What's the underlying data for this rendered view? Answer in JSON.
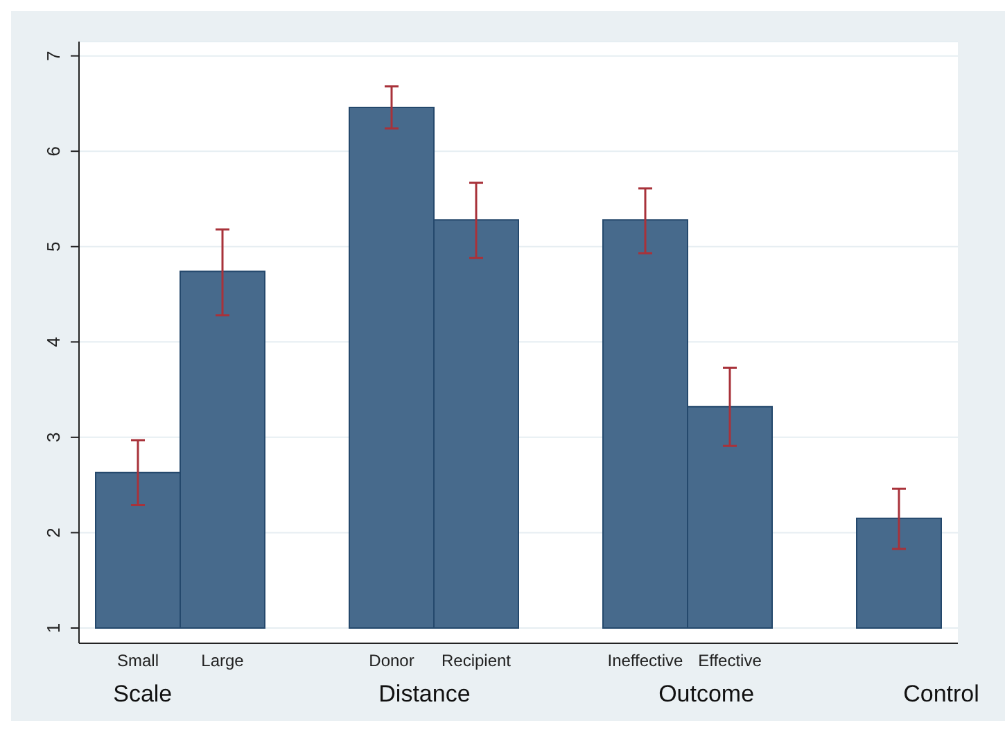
{
  "chart_data": {
    "type": "bar",
    "categories": [
      "Small",
      "Large",
      null,
      "Donor",
      "Recipient",
      null,
      "Ineffective",
      "Effective",
      null,
      null
    ],
    "base": [
      1,
      1,
      null,
      1,
      1,
      null,
      1,
      1,
      null,
      1
    ],
    "values": [
      1.63,
      3.74,
      null,
      5.46,
      4.28,
      null,
      4.28,
      2.32,
      null,
      1.15
    ],
    "errors": [
      [
        2.29,
        2.97
      ],
      [
        4.28,
        5.18
      ],
      null,
      [
        6.24,
        6.68
      ],
      [
        4.88,
        5.67
      ],
      null,
      [
        4.93,
        5.61
      ],
      [
        2.91,
        3.73
      ],
      null,
      [
        1.83,
        2.46
      ]
    ],
    "color": "#476a8c",
    "ylim": [
      0.84,
      7.15
    ],
    "yticks": [
      1,
      2,
      3,
      4,
      5,
      6,
      7
    ],
    "grid": "y",
    "annotations": [
      "Scale",
      "Distance",
      "Outcome",
      "Control"
    ]
  }
}
